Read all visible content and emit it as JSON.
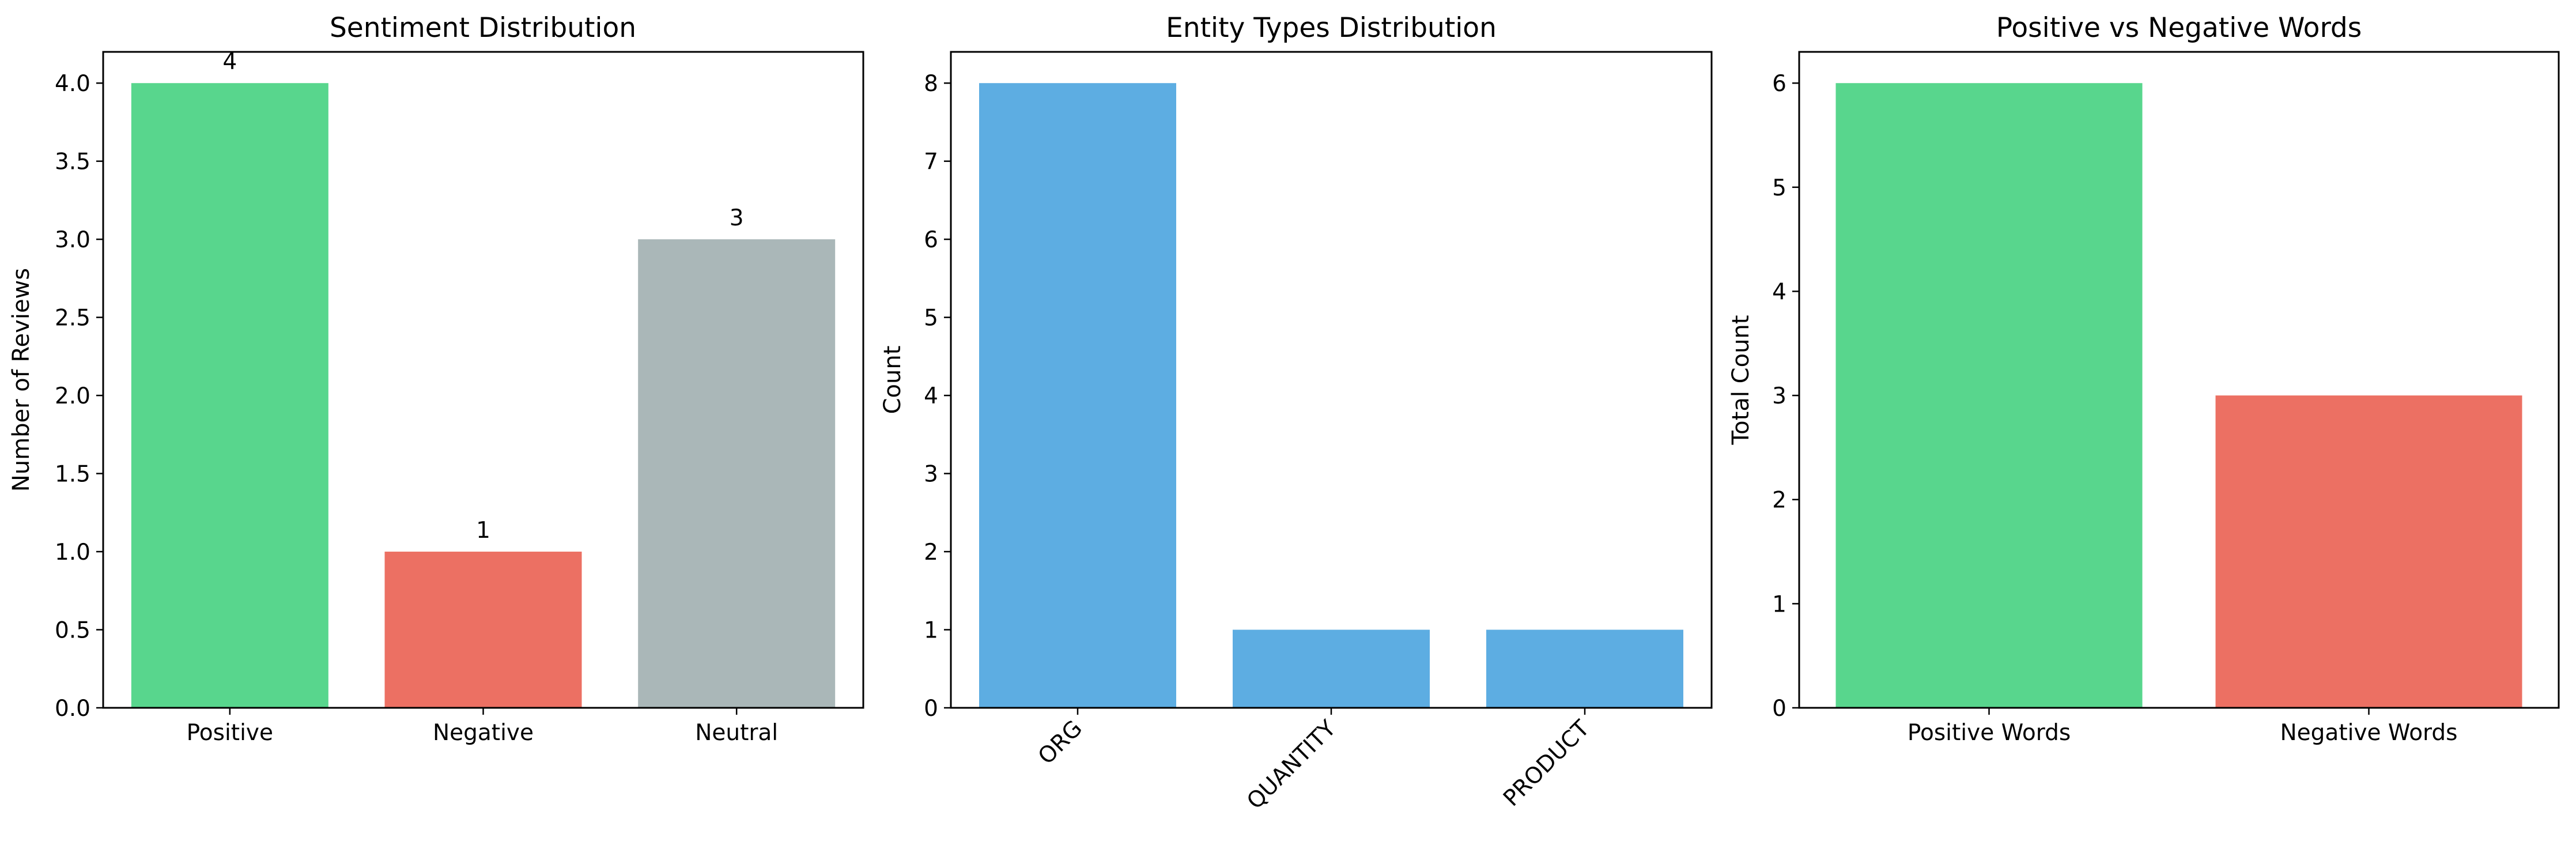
{
  "colors": {
    "positive": "#58d68d",
    "negative": "#ec7063",
    "neutral": "#aab7b8",
    "entity": "#5dade2"
  },
  "chart_data": [
    {
      "type": "bar",
      "title": "Sentiment Distribution",
      "xlabel": "",
      "ylabel": "Number of Reviews",
      "categories": [
        "Positive",
        "Negative",
        "Neutral"
      ],
      "values": [
        4,
        1,
        3
      ],
      "data_labels": [
        "4",
        "1",
        "3"
      ],
      "bar_colors": [
        "#58d68d",
        "#ec7063",
        "#aab7b8"
      ],
      "ylim": [
        0,
        4.2
      ],
      "yticks": [
        0,
        0.5,
        1,
        1.5,
        2,
        2.5,
        3,
        3.5,
        4
      ],
      "ytick_labels": [
        "0.0",
        "0.5",
        "1.0",
        "1.5",
        "2.0",
        "2.5",
        "3.0",
        "3.5",
        "4.0"
      ],
      "grid": false
    },
    {
      "type": "bar",
      "title": "Entity Types Distribution",
      "xlabel": "",
      "ylabel": "Count",
      "categories": [
        "ORG",
        "QUANTITY",
        "PRODUCT"
      ],
      "values": [
        8,
        1,
        1
      ],
      "bar_colors": [
        "#5dade2",
        "#5dade2",
        "#5dade2"
      ],
      "ylim": [
        0,
        8.4
      ],
      "yticks": [
        0,
        1,
        2,
        3,
        4,
        5,
        6,
        7,
        8
      ],
      "ytick_labels": [
        "0",
        "1",
        "2",
        "3",
        "4",
        "5",
        "6",
        "7",
        "8"
      ],
      "xtick_rotation": 45,
      "grid": false
    },
    {
      "type": "bar",
      "title": "Positive vs Negative Words",
      "xlabel": "",
      "ylabel": "Total Count",
      "categories": [
        "Positive Words",
        "Negative Words"
      ],
      "values": [
        6,
        3
      ],
      "bar_colors": [
        "#58d68d",
        "#ec7063"
      ],
      "ylim": [
        0,
        6.3
      ],
      "yticks": [
        0,
        1,
        2,
        3,
        4,
        5,
        6
      ],
      "ytick_labels": [
        "0",
        "1",
        "2",
        "3",
        "4",
        "5",
        "6"
      ],
      "grid": false
    }
  ]
}
